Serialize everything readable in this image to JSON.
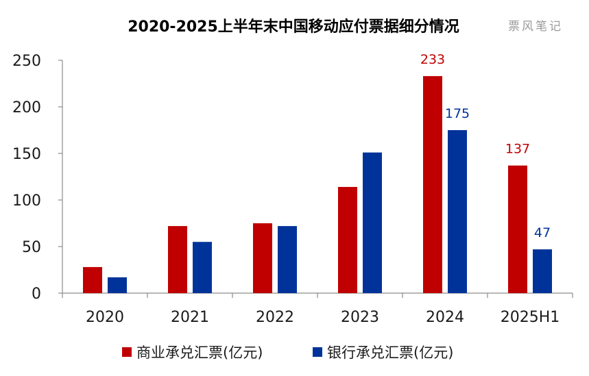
{
  "chart_data": {
    "type": "bar",
    "title": "2020-2025上半年末中国移动应付票据细分情况",
    "watermark": "票风笔记",
    "categories": [
      "2020",
      "2021",
      "2022",
      "2023",
      "2024",
      "2025H1"
    ],
    "series": [
      {
        "name": "商业承兑汇票(亿元)",
        "color": "#C00000",
        "values": [
          28,
          72,
          75,
          114,
          233,
          137
        ],
        "data_labels": [
          null,
          null,
          null,
          null,
          "233",
          "137"
        ]
      },
      {
        "name": "银行承兑汇票(亿元)",
        "color": "#003399",
        "values": [
          17,
          55,
          72,
          151,
          175,
          47
        ],
        "data_labels": [
          null,
          null,
          null,
          null,
          "175",
          "47"
        ]
      }
    ],
    "yticks": [
      "0",
      "50",
      "100",
      "150",
      "200",
      "250"
    ],
    "ylim": [
      0,
      250
    ],
    "xlabel": "",
    "ylabel": "",
    "grid": false,
    "legend_position": "bottom"
  }
}
